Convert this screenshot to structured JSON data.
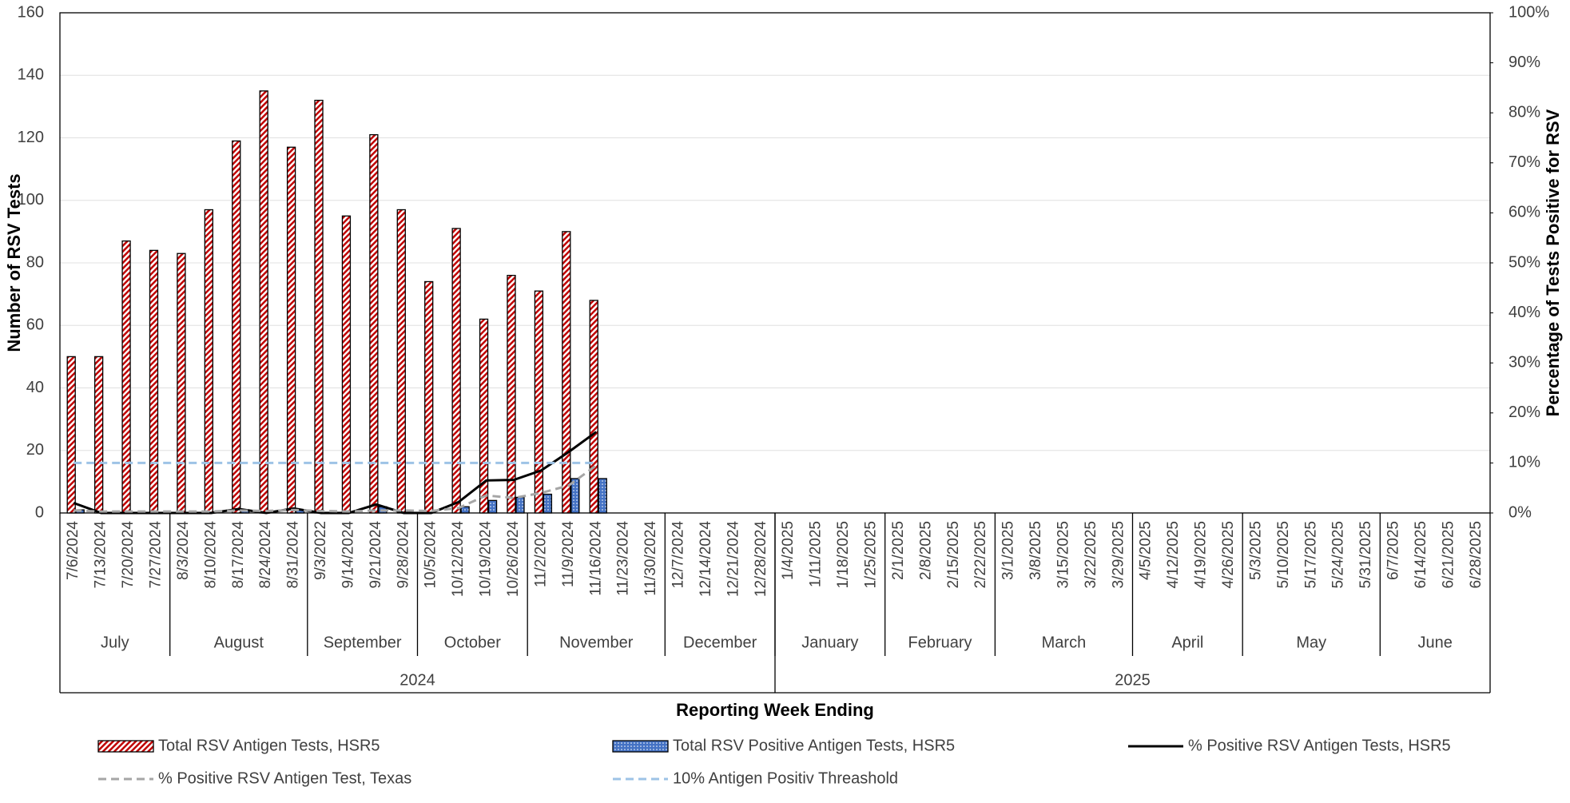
{
  "chart_data": {
    "type": "bar",
    "xlabel": "Reporting Week Ending",
    "ylabel": "Number of RSV Tests",
    "y2label": "Percentage of Tests Positive for RSV",
    "categories": [
      "7/6/2024",
      "7/13/2024",
      "7/20/2024",
      "7/27/2024",
      "8/3/2024",
      "8/10/2024",
      "8/17/2024",
      "8/24/2024",
      "8/31/2024",
      "9/3/2022",
      "9/14/2024",
      "9/21/2024",
      "9/28/2024",
      "10/5/2024",
      "10/12/2024",
      "10/19/2024",
      "10/26/2024",
      "11/2/2024",
      "11/9/2024",
      "11/16/2024",
      "11/23/2024",
      "11/30/2024",
      "12/7/2024",
      "12/14/2024",
      "12/21/2024",
      "12/28/2024",
      "1/4/2025",
      "1/11/2025",
      "1/18/2025",
      "1/25/2025",
      "2/1/2025",
      "2/8/2025",
      "2/15/2025",
      "2/22/2025",
      "3/1/2025",
      "3/8/2025",
      "3/15/2025",
      "3/22/2025",
      "3/29/2025",
      "4/5/2025",
      "4/12/2025",
      "4/19/2025",
      "4/26/2025",
      "5/3/2025",
      "5/10/2025",
      "5/17/2025",
      "5/24/2025",
      "5/31/2025",
      "6/7/2025",
      "6/14/2025",
      "6/21/2025",
      "6/28/2025"
    ],
    "month_groups": [
      {
        "label": "July",
        "span": 4
      },
      {
        "label": "August",
        "span": 5
      },
      {
        "label": "September",
        "span": 4
      },
      {
        "label": "October",
        "span": 4
      },
      {
        "label": "November",
        "span": 5
      },
      {
        "label": "December",
        "span": 4
      },
      {
        "label": "January",
        "span": 4
      },
      {
        "label": "February",
        "span": 4
      },
      {
        "label": "March",
        "span": 5
      },
      {
        "label": "April",
        "span": 4
      },
      {
        "label": "May",
        "span": 5
      },
      {
        "label": "June",
        "span": 4
      }
    ],
    "year_groups": [
      {
        "label": "2024",
        "span": 26
      },
      {
        "label": "2025",
        "span": 26
      }
    ],
    "series": [
      {
        "name": "Total RSV Antigen Tests, HSR5",
        "type": "bar",
        "color": "#c00000",
        "values": [
          50,
          50,
          87,
          84,
          83,
          97,
          119,
          135,
          117,
          132,
          95,
          121,
          97,
          74,
          91,
          62,
          76,
          71,
          90,
          68,
          null,
          null,
          null,
          null,
          null,
          null,
          null,
          null,
          null,
          null,
          null,
          null,
          null,
          null,
          null,
          null,
          null,
          null,
          null,
          null,
          null,
          null,
          null,
          null,
          null,
          null,
          null,
          null,
          null,
          null,
          null,
          null
        ]
      },
      {
        "name": "Total RSV Positive Antigen Tests, HSR5",
        "type": "bar",
        "color": "#4472c4",
        "values": [
          1,
          0,
          0,
          0,
          0,
          0,
          1,
          0,
          1,
          0,
          0,
          2,
          0,
          0,
          2,
          4,
          5,
          6,
          11,
          11,
          null,
          null,
          null,
          null,
          null,
          null,
          null,
          null,
          null,
          null,
          null,
          null,
          null,
          null,
          null,
          null,
          null,
          null,
          null,
          null,
          null,
          null,
          null,
          null,
          null,
          null,
          null,
          null,
          null,
          null,
          null,
          null
        ]
      },
      {
        "name": "% Positive RSV Antigen Tests, HSR5",
        "type": "line",
        "axis": "y2",
        "color": "#000000",
        "dash": false,
        "values": [
          2,
          0,
          0,
          0,
          0,
          0,
          0.8,
          0,
          0.9,
          0,
          0,
          1.7,
          0,
          0,
          2.2,
          6.5,
          6.6,
          8.5,
          12.2,
          16.2,
          null,
          null,
          null,
          null,
          null,
          null,
          null,
          null,
          null,
          null,
          null,
          null,
          null,
          null,
          null,
          null,
          null,
          null,
          null,
          null,
          null,
          null,
          null,
          null,
          null,
          null,
          null,
          null,
          null,
          null,
          null,
          null
        ]
      },
      {
        "name": "% Positive RSV Antigen Test, Texas",
        "type": "line",
        "axis": "y2",
        "color": "#a6a6a6",
        "dash": true,
        "values": [
          0.5,
          0.3,
          0.3,
          0.3,
          0.3,
          0.3,
          0.5,
          0.4,
          0.6,
          0.4,
          0.3,
          0.5,
          0.5,
          0.4,
          1.0,
          3.5,
          3.0,
          4.0,
          5.5,
          9.5,
          null,
          null,
          null,
          null,
          null,
          null,
          null,
          null,
          null,
          null,
          null,
          null,
          null,
          null,
          null,
          null,
          null,
          null,
          null,
          null,
          null,
          null,
          null,
          null,
          null,
          null,
          null,
          null,
          null,
          null,
          null,
          null
        ]
      },
      {
        "name": "10% Antigen Positiv Threashold",
        "type": "line",
        "axis": "y2",
        "color": "#9dc3e6",
        "dash": true,
        "values": [
          10,
          10,
          10,
          10,
          10,
          10,
          10,
          10,
          10,
          10,
          10,
          10,
          10,
          10,
          10,
          10,
          10,
          10,
          10,
          10,
          null,
          null,
          null,
          null,
          null,
          null,
          null,
          null,
          null,
          null,
          null,
          null,
          null,
          null,
          null,
          null,
          null,
          null,
          null,
          null,
          null,
          null,
          null,
          null,
          null,
          null,
          null,
          null,
          null,
          null,
          null,
          null
        ]
      }
    ],
    "ylim": [
      0,
      160
    ],
    "yticks": [
      0,
      20,
      40,
      60,
      80,
      100,
      120,
      140,
      160
    ],
    "y2lim": [
      0,
      100
    ],
    "y2ticks": [
      {
        "value": 0,
        "label": "0%"
      },
      {
        "value": 10,
        "label": "10%"
      },
      {
        "value": 20,
        "label": "20%"
      },
      {
        "value": 30,
        "label": "30%"
      },
      {
        "value": 40,
        "label": "40%"
      },
      {
        "value": 50,
        "label": "50%"
      },
      {
        "value": 60,
        "label": "60%"
      },
      {
        "value": 70,
        "label": "70%"
      },
      {
        "value": 80,
        "label": "80%"
      },
      {
        "value": 90,
        "label": "90%"
      },
      {
        "value": 100,
        "label": "100%"
      }
    ],
    "grid": true,
    "legend": "bottom"
  }
}
